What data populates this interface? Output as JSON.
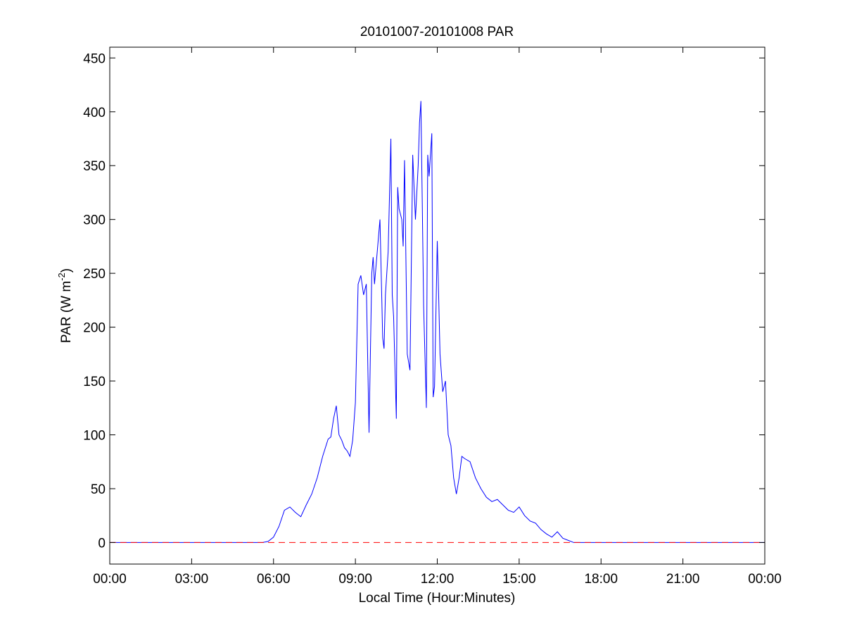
{
  "chart_data": {
    "type": "line",
    "title": "20101007-20101008 PAR",
    "xlabel": "Local Time (Hour:Minutes)",
    "ylabel_main": "PAR (W m",
    "ylabel_sup": "-2",
    "ylabel_close": ")",
    "x_unit": "hours",
    "xlim": [
      0,
      24
    ],
    "ylim": [
      -20,
      460
    ],
    "x_ticks": [
      0,
      3,
      6,
      9,
      12,
      15,
      18,
      21,
      24
    ],
    "x_tick_labels": [
      "00:00",
      "03:00",
      "06:00",
      "09:00",
      "12:00",
      "15:00",
      "18:00",
      "21:00",
      "00:00"
    ],
    "y_ticks": [
      0,
      50,
      100,
      150,
      200,
      250,
      300,
      350,
      400,
      450
    ],
    "y_tick_labels": [
      "0",
      "50",
      "100",
      "150",
      "200",
      "250",
      "300",
      "350",
      "400",
      "450"
    ],
    "grid": false,
    "series": [
      {
        "color": "#0000ff",
        "style": "solid",
        "x": [
          0,
          5.6,
          5.8,
          6.0,
          6.2,
          6.4,
          6.6,
          6.8,
          7.0,
          7.2,
          7.4,
          7.6,
          7.8,
          8.0,
          8.1,
          8.2,
          8.3,
          8.4,
          8.5,
          8.6,
          8.7,
          8.8,
          8.9,
          9.0,
          9.1,
          9.2,
          9.3,
          9.4,
          9.5,
          9.6,
          9.65,
          9.7,
          9.8,
          9.9,
          10.0,
          10.05,
          10.1,
          10.2,
          10.3,
          10.35,
          10.4,
          10.5,
          10.55,
          10.6,
          10.7,
          10.75,
          10.8,
          10.9,
          11.0,
          11.1,
          11.2,
          11.3,
          11.35,
          11.4,
          11.5,
          11.6,
          11.65,
          11.7,
          11.8,
          11.85,
          11.9,
          12.0,
          12.05,
          12.1,
          12.2,
          12.3,
          12.4,
          12.5,
          12.6,
          12.7,
          12.8,
          12.9,
          13.0,
          13.2,
          13.4,
          13.6,
          13.8,
          14.0,
          14.2,
          14.4,
          14.6,
          14.8,
          15.0,
          15.2,
          15.4,
          15.6,
          15.8,
          16.0,
          16.2,
          16.4,
          16.6,
          16.8,
          17.0,
          17.2,
          17.4,
          17.6,
          17.8,
          18.0,
          24
        ],
        "y": [
          0,
          0,
          1,
          5,
          15,
          30,
          33,
          28,
          24,
          35,
          45,
          60,
          80,
          96,
          98,
          115,
          127,
          100,
          95,
          88,
          85,
          80,
          95,
          130,
          240,
          248,
          230,
          240,
          102,
          250,
          265,
          240,
          270,
          300,
          190,
          180,
          230,
          270,
          375,
          230,
          210,
          115,
          330,
          310,
          300,
          275,
          355,
          175,
          160,
          360,
          300,
          350,
          390,
          410,
          220,
          125,
          360,
          340,
          380,
          135,
          145,
          280,
          230,
          175,
          140,
          150,
          100,
          90,
          60,
          45,
          60,
          80,
          78,
          75,
          60,
          50,
          42,
          38,
          40,
          35,
          30,
          28,
          33,
          25,
          20,
          18,
          12,
          8,
          5,
          10,
          4,
          2,
          0,
          0,
          0,
          0,
          0,
          0,
          0
        ]
      },
      {
        "color": "#ff0000",
        "style": "dashed",
        "x": [
          0,
          24
        ],
        "y": [
          0,
          0
        ]
      }
    ]
  }
}
